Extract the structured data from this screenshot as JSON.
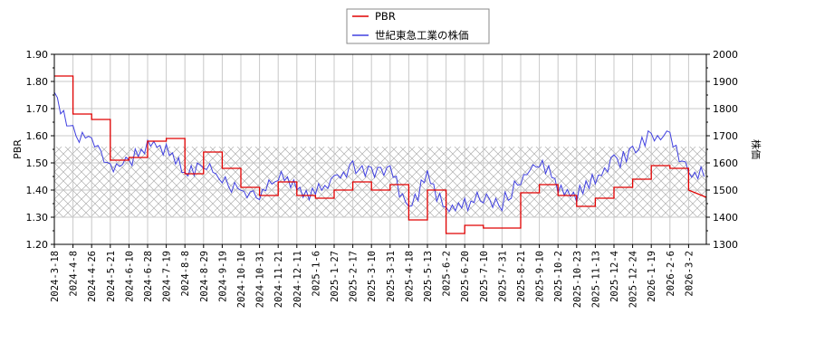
{
  "legend": {
    "items": [
      {
        "label": "PBR",
        "color": "#e00000"
      },
      {
        "label": "世紀東急工業の株価",
        "color": "#4040e0"
      }
    ]
  },
  "axes": {
    "left_label": "PBR",
    "right_label": "株価",
    "left_ticks": [
      "1.90",
      "1.80",
      "1.70",
      "1.60",
      "1.50",
      "1.40",
      "1.30",
      "1.20"
    ],
    "right_ticks": [
      "2000",
      "1900",
      "1800",
      "1700",
      "1600",
      "1500",
      "1400",
      "1300"
    ]
  },
  "chart_data": {
    "type": "line",
    "title": "",
    "xlabel": "",
    "ylabel": "PBR",
    "ylabel_right": "株価",
    "ylim": [
      1.2,
      1.9
    ],
    "ylim_right": [
      1300,
      2000
    ],
    "grid": true,
    "legend_position": "top-center",
    "shaded_band": {
      "from": 1.3,
      "to": 1.56,
      "axis": "left",
      "style": "cross-hatch"
    },
    "categories": [
      "2024-3-18",
      "2024-4-8",
      "2024-4-26",
      "2024-5-21",
      "2024-6-10",
      "2024-6-28",
      "2024-7-19",
      "2024-8-8",
      "2024-8-29",
      "2024-9-19",
      "2024-10-10",
      "2024-10-31",
      "2024-11-21",
      "2024-12-11",
      "2025-1-6",
      "2025-1-27",
      "2025-2-17",
      "2025-3-10",
      "2025-3-31",
      "2025-4-18",
      "2025-5-13",
      "2025-6-2",
      "2025-6-20",
      "2025-7-10",
      "2025-7-31",
      "2025-8-21",
      "2025-9-10",
      "2025-10-2",
      "2025-10-23",
      "2025-11-13",
      "2025-12-4",
      "2025-12-24",
      "2026-1-19",
      "2026-2-6",
      "2026-3-2"
    ],
    "series": [
      {
        "name": "PBR",
        "axis": "left",
        "color": "#e00000",
        "values": [
          1.82,
          1.68,
          1.66,
          1.51,
          1.52,
          1.58,
          1.59,
          1.46,
          1.54,
          1.48,
          1.41,
          1.38,
          1.43,
          1.38,
          1.37,
          1.4,
          1.43,
          1.4,
          1.42,
          1.29,
          1.4,
          1.24,
          1.27,
          1.26,
          1.26,
          1.39,
          1.42,
          1.38,
          1.34,
          1.37,
          1.41,
          1.44,
          1.49,
          1.48,
          1.4
        ]
      },
      {
        "name": "世紀東急工業の株価",
        "axis": "right",
        "color": "#4040e0",
        "values": [
          1860,
          1710,
          1690,
          1580,
          1600,
          1670,
          1650,
          1560,
          1600,
          1540,
          1500,
          1470,
          1560,
          1500,
          1490,
          1540,
          1580,
          1570,
          1570,
          1430,
          1550,
          1420,
          1450,
          1470,
          1450,
          1540,
          1600,
          1520,
          1480,
          1540,
          1600,
          1640,
          1700,
          1700,
          1560
        ]
      }
    ]
  }
}
